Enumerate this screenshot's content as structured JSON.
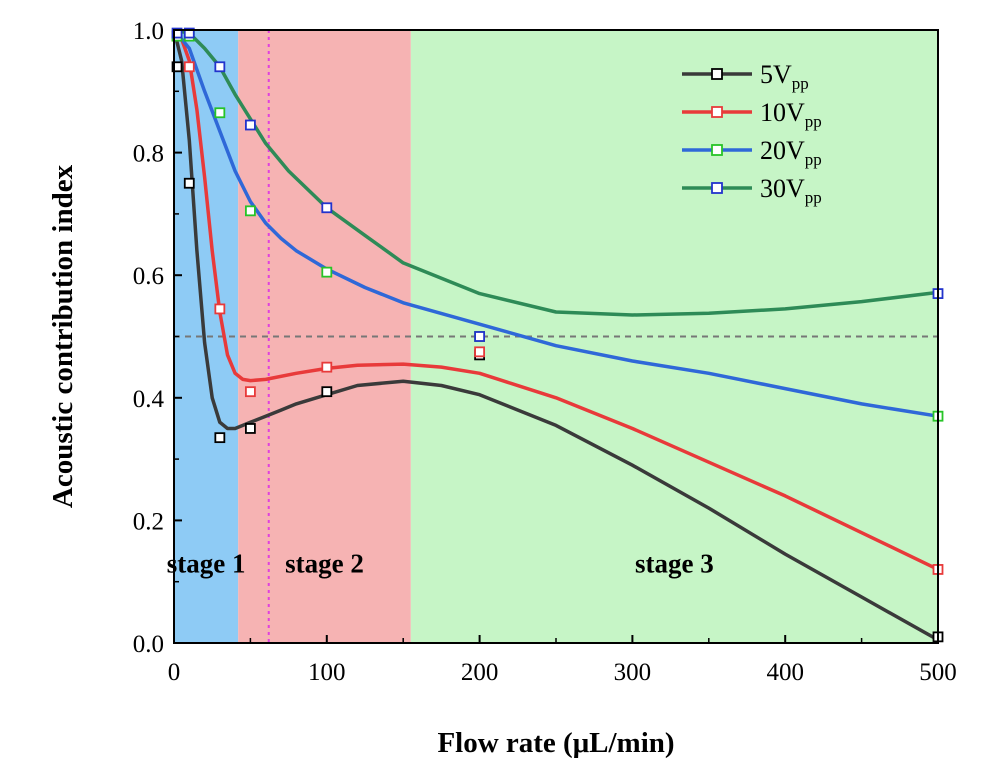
{
  "chart_data": {
    "type": "line",
    "xlabel": "Flow rate (μL/min)",
    "ylabel": "Acoustic contribution index",
    "xlim": [
      0,
      500
    ],
    "ylim": [
      0,
      1.0
    ],
    "x_ticks": [
      0,
      100,
      200,
      300,
      400,
      500
    ],
    "y_ticks": [
      0.0,
      0.2,
      0.4,
      0.6,
      0.8,
      1.0
    ],
    "x_tick_labels": [
      "0",
      "100",
      "200",
      "300",
      "400",
      "500"
    ],
    "y_tick_labels": [
      "0.0",
      "0.2",
      "0.4",
      "0.6",
      "0.8",
      "1.0"
    ],
    "grid": false,
    "legend_position": "top-right",
    "regions": [
      {
        "label": "stage 1",
        "x_range": [
          0,
          42
        ],
        "color": "#8ecbf5"
      },
      {
        "label": "stage 2",
        "x_range": [
          42,
          155
        ],
        "color": "#f6b3b3"
      },
      {
        "label": "stage 3",
        "x_range": [
          155,
          500
        ],
        "color": "#c6f5c6"
      }
    ],
    "reference_lines": [
      {
        "orientation": "horizontal",
        "value": 0.5,
        "color": "#777777",
        "style": "dashed"
      },
      {
        "orientation": "vertical",
        "value": 62,
        "color": "#e040e0",
        "style": "dotted"
      }
    ],
    "series": [
      {
        "name": "5V",
        "name_sub": "pp",
        "line_color": "#3a3a3a",
        "marker_color": "#000000",
        "points": [
          [
            2,
            0.94
          ],
          [
            10,
            0.75
          ],
          [
            30,
            0.335
          ],
          [
            50,
            0.35
          ],
          [
            100,
            0.41
          ],
          [
            200,
            0.47
          ],
          [
            500,
            0.01
          ]
        ],
        "curve": [
          [
            0,
            1.0
          ],
          [
            5,
            0.95
          ],
          [
            10,
            0.82
          ],
          [
            15,
            0.64
          ],
          [
            20,
            0.49
          ],
          [
            25,
            0.4
          ],
          [
            30,
            0.36
          ],
          [
            35,
            0.35
          ],
          [
            40,
            0.35
          ],
          [
            45,
            0.355
          ],
          [
            50,
            0.36
          ],
          [
            60,
            0.37
          ],
          [
            70,
            0.38
          ],
          [
            80,
            0.39
          ],
          [
            100,
            0.405
          ],
          [
            120,
            0.42
          ],
          [
            150,
            0.427
          ],
          [
            175,
            0.42
          ],
          [
            200,
            0.405
          ],
          [
            250,
            0.355
          ],
          [
            300,
            0.29
          ],
          [
            350,
            0.22
          ],
          [
            400,
            0.145
          ],
          [
            450,
            0.075
          ],
          [
            500,
            0.005
          ]
        ]
      },
      {
        "name": "10V",
        "name_sub": "pp",
        "line_color": "#e83a3a",
        "marker_color": "#e83a3a",
        "points": [
          [
            2,
            0.99
          ],
          [
            10,
            0.94
          ],
          [
            30,
            0.545
          ],
          [
            50,
            0.41
          ],
          [
            100,
            0.45
          ],
          [
            200,
            0.475
          ],
          [
            500,
            0.12
          ]
        ],
        "curve": [
          [
            0,
            1.0
          ],
          [
            5,
            0.985
          ],
          [
            10,
            0.95
          ],
          [
            15,
            0.87
          ],
          [
            20,
            0.76
          ],
          [
            25,
            0.64
          ],
          [
            30,
            0.54
          ],
          [
            35,
            0.47
          ],
          [
            40,
            0.44
          ],
          [
            45,
            0.43
          ],
          [
            50,
            0.428
          ],
          [
            60,
            0.43
          ],
          [
            80,
            0.44
          ],
          [
            100,
            0.448
          ],
          [
            120,
            0.453
          ],
          [
            150,
            0.455
          ],
          [
            175,
            0.45
          ],
          [
            200,
            0.44
          ],
          [
            250,
            0.4
          ],
          [
            300,
            0.35
          ],
          [
            350,
            0.295
          ],
          [
            400,
            0.24
          ],
          [
            450,
            0.18
          ],
          [
            500,
            0.12
          ]
        ]
      },
      {
        "name": "20V",
        "name_sub": "pp",
        "line_color": "#2f68d8",
        "marker_color": "#27c427",
        "points": [
          [
            2,
            0.99
          ],
          [
            10,
            0.99
          ],
          [
            30,
            0.865
          ],
          [
            50,
            0.705
          ],
          [
            100,
            0.605
          ],
          [
            200,
            0.5
          ],
          [
            500,
            0.37
          ]
        ],
        "curve": [
          [
            0,
            1.0
          ],
          [
            10,
            0.97
          ],
          [
            20,
            0.9
          ],
          [
            30,
            0.835
          ],
          [
            40,
            0.77
          ],
          [
            50,
            0.72
          ],
          [
            60,
            0.685
          ],
          [
            70,
            0.66
          ],
          [
            80,
            0.64
          ],
          [
            100,
            0.61
          ],
          [
            125,
            0.58
          ],
          [
            150,
            0.555
          ],
          [
            200,
            0.52
          ],
          [
            250,
            0.485
          ],
          [
            300,
            0.46
          ],
          [
            350,
            0.44
          ],
          [
            400,
            0.415
          ],
          [
            450,
            0.39
          ],
          [
            500,
            0.37
          ]
        ]
      },
      {
        "name": "30V",
        "name_sub": "pp",
        "line_color": "#2e8b57",
        "marker_color": "#2233cc",
        "points": [
          [
            2,
            0.995
          ],
          [
            10,
            0.995
          ],
          [
            30,
            0.94
          ],
          [
            50,
            0.845
          ],
          [
            100,
            0.71
          ],
          [
            200,
            0.5
          ],
          [
            500,
            0.57
          ]
        ],
        "curve": [
          [
            0,
            1.0
          ],
          [
            10,
            0.995
          ],
          [
            20,
            0.97
          ],
          [
            30,
            0.94
          ],
          [
            40,
            0.895
          ],
          [
            50,
            0.855
          ],
          [
            60,
            0.815
          ],
          [
            75,
            0.77
          ],
          [
            100,
            0.71
          ],
          [
            125,
            0.665
          ],
          [
            150,
            0.62
          ],
          [
            200,
            0.57
          ],
          [
            250,
            0.54
          ],
          [
            300,
            0.535
          ],
          [
            350,
            0.538
          ],
          [
            400,
            0.545
          ],
          [
            450,
            0.557
          ],
          [
            500,
            0.572
          ]
        ]
      }
    ]
  }
}
